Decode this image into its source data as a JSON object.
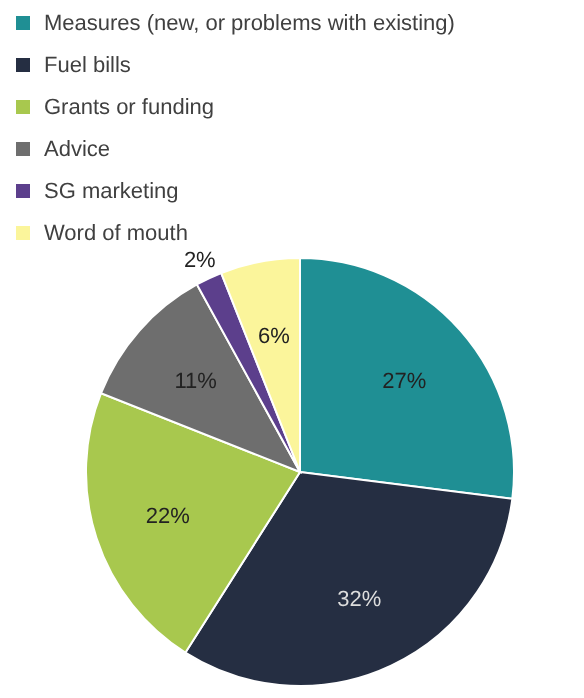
{
  "chart_data": {
    "type": "pie",
    "categories": [
      "Measures (new, or problems with existing)",
      "Fuel bills",
      "Grants or funding",
      "Advice",
      "SG marketing",
      "Word of mouth"
    ],
    "values": [
      27,
      32,
      22,
      11,
      2,
      6
    ],
    "colors": [
      "#1f8f94",
      "#252e42",
      "#a8c84e",
      "#6e6e6e",
      "#5c3f8c",
      "#fbf59b"
    ],
    "value_labels": [
      "27%",
      "32%",
      "22%",
      "11%",
      "2%",
      "6%"
    ],
    "legend": "top left"
  }
}
